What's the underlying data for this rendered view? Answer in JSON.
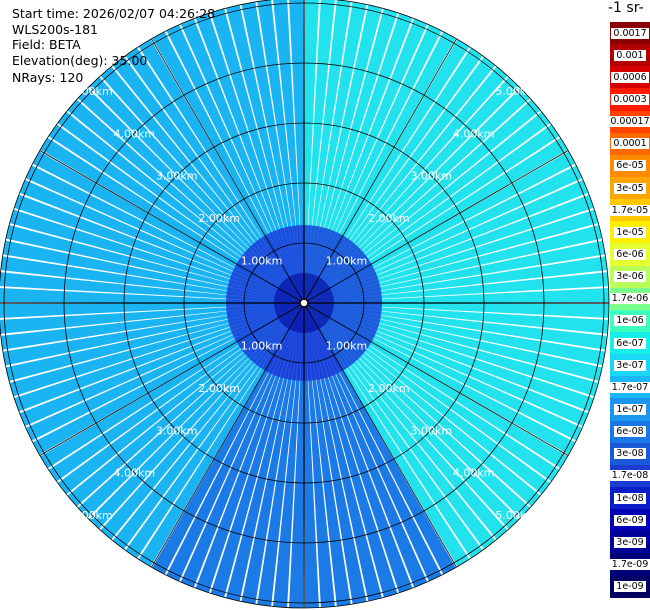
{
  "header": {
    "start_time": "Start time: 2026/02/07 04:26:28",
    "instrument": "WLS200s-181",
    "field": "Field: BETA",
    "elevation": "Elevation(deg): 35.00",
    "nrays": "NRays: 120"
  },
  "colorbar": {
    "unit": "-1 sr-",
    "levels": [
      {
        "label": "0.0017",
        "color": "#8b0000"
      },
      {
        "label": "0.001",
        "color": "#b30000"
      },
      {
        "label": "0.0006",
        "color": "#d40000"
      },
      {
        "label": "0.0003",
        "color": "#ff1a00"
      },
      {
        "label": "0.00017",
        "color": "#ff4400"
      },
      {
        "label": "0.0001",
        "color": "#ff6a00"
      },
      {
        "label": "6e-05",
        "color": "#ff8c00"
      },
      {
        "label": "3e-05",
        "color": "#ffa500"
      },
      {
        "label": "1.7e-05",
        "color": "#ffc800"
      },
      {
        "label": "1e-05",
        "color": "#ffee00"
      },
      {
        "label": "6e-06",
        "color": "#e6ff33"
      },
      {
        "label": "3e-06",
        "color": "#b8ff5a"
      },
      {
        "label": "1.7e-06",
        "color": "#7cff8a"
      },
      {
        "label": "1e-06",
        "color": "#3cffbe"
      },
      {
        "label": "6e-07",
        "color": "#14f0e8"
      },
      {
        "label": "3e-07",
        "color": "#1ad8f5"
      },
      {
        "label": "1.7e-07",
        "color": "#1ab8f5"
      },
      {
        "label": "1e-07",
        "color": "#1a96f0"
      },
      {
        "label": "6e-08",
        "color": "#1a78e6"
      },
      {
        "label": "3e-08",
        "color": "#1a5ad9"
      },
      {
        "label": "1.7e-08",
        "color": "#1a3cd0"
      },
      {
        "label": "1e-08",
        "color": "#0a1ec8"
      },
      {
        "label": "6e-09",
        "color": "#0000b4"
      },
      {
        "label": "3e-09",
        "color": "#000096"
      },
      {
        "label": "1.7e-09",
        "color": "#00007a"
      },
      {
        "label": "1e-09",
        "color": "#000060"
      }
    ]
  },
  "chart_data": {
    "type": "heatmap",
    "projection": "polar (PPI scan)",
    "field": "BETA",
    "elevation_deg": 35.0,
    "n_rays": 120,
    "range_rings_km": [
      1,
      2,
      3,
      4,
      5
    ],
    "ring_labels": [
      "1.00km",
      "2.00km",
      "3.00km",
      "4.00km",
      "5.00km"
    ],
    "sectors": [
      {
        "azimuth_from": 0,
        "azimuth_to": 150,
        "typical_value": "3e-07",
        "color": "#22e2ee"
      },
      {
        "azimuth_from": 150,
        "azimuth_to": 210,
        "typical_value": "6e-08",
        "color": "#1c7ae6"
      },
      {
        "azimuth_from": 210,
        "azimuth_to": 360,
        "typical_value": "1.7e-07",
        "color": "#1ab4f3"
      }
    ],
    "near_range_value": "3e-09",
    "grid": true
  }
}
